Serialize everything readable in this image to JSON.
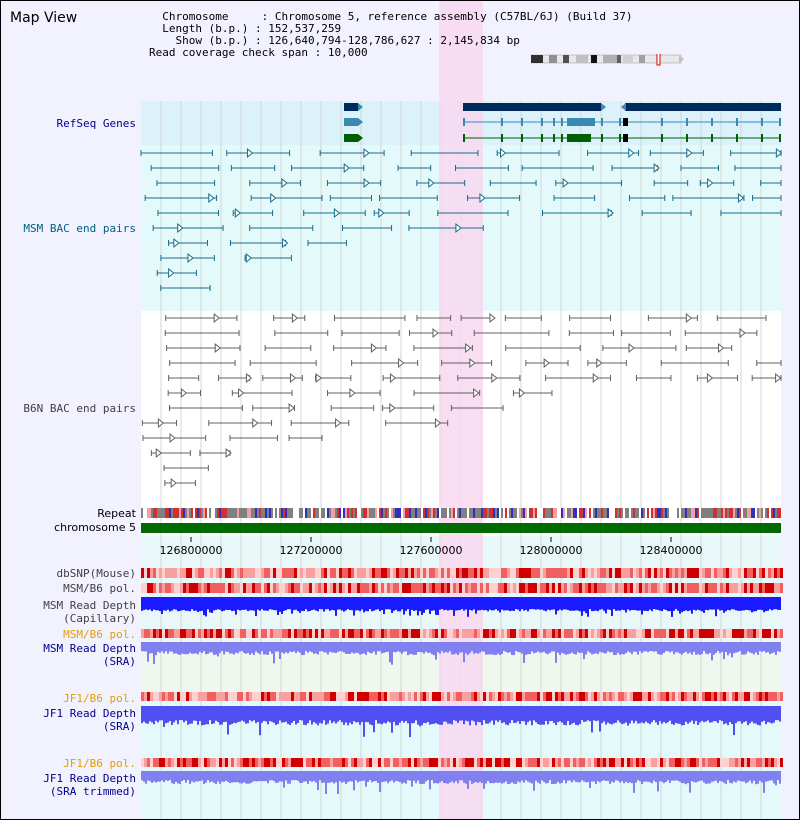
{
  "title": "Map View",
  "info": {
    "chromosome_key": "Chromosome",
    "chromosome": "Chromosome 5, reference assembly (C57BL/6J) (Build 37)",
    "length_key": "Length (b.p.)",
    "length": "152,537,259",
    "show_key": "Show (b.p.)",
    "show": "126,640,794-128,786,627 : 2,145,834 bp",
    "coverage_key": "Read coverage check span",
    "coverage": "10,000"
  },
  "tracks": {
    "refseq": "RefSeq Genes",
    "msm_bac": "MSM BAC end pairs",
    "b6n_bac": "B6N BAC end pairs",
    "repeat": "Repeat",
    "chromosome": "chromosome 5",
    "dbsnp": "dbSNP(Mouse)",
    "msm_b6_pol1": "MSM/B6 pol.",
    "msm_depth_cap": "MSM Read Depth\n(Capillary)",
    "msm_b6_pol2": "MSM/B6 pol.",
    "msm_depth_sra": "MSM Read Depth\n(SRA)",
    "jf1_b6_pol1": "JF1/B6 pol.",
    "jf1_depth_sra": "JF1 Read Depth\n(SRA)",
    "jf1_b6_pol2": "JF1/B6 pol.",
    "jf1_depth_trim": "JF1 Read Depth\n(SRA trimmed)"
  },
  "axis": {
    "ticks": [
      "126800000",
      "127200000",
      "127600000",
      "128000000",
      "128400000"
    ]
  },
  "colors": {
    "refseq_label": "#00008b",
    "msm_label": "#006080",
    "b6n_label": "#404040",
    "orange_label": "#e0a000",
    "blue_label": "#00008b",
    "highlight": "#f8d8f0"
  }
}
